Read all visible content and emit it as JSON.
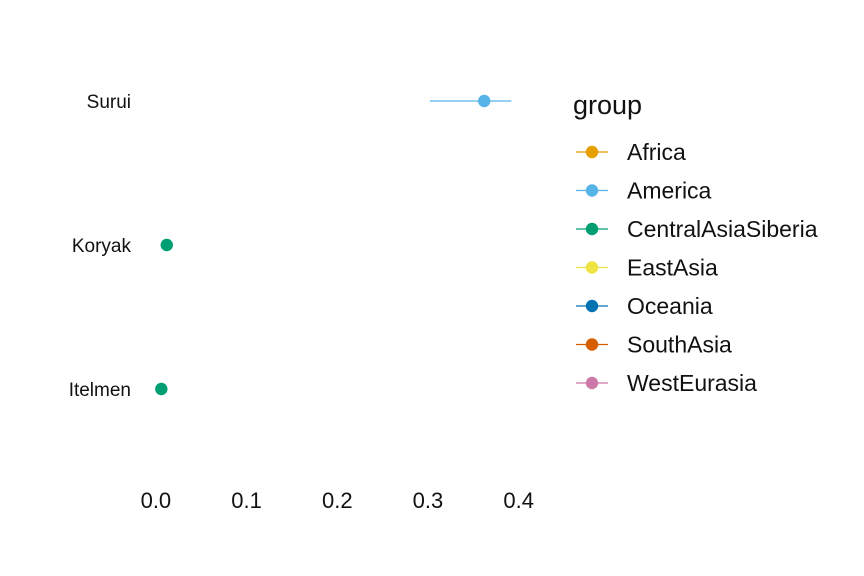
{
  "chart_data": {
    "type": "scatter",
    "subtype": "dot-and-whisker",
    "xlim": [
      -0.012,
      0.418
    ],
    "x_ticks": [
      "0.0",
      "0.1",
      "0.2",
      "0.3",
      "0.4"
    ],
    "x_tick_values": [
      0.0,
      0.1,
      0.2,
      0.3,
      0.4
    ],
    "grid": false,
    "legend_position": "right",
    "legend": {
      "title": "group",
      "entries": [
        {
          "name": "Africa",
          "color": "#E69F00"
        },
        {
          "name": "America",
          "color": "#56B4E9"
        },
        {
          "name": "CentralAsiaSiberia",
          "color": "#009E73"
        },
        {
          "name": "EastAsia",
          "color": "#F0E442"
        },
        {
          "name": "Oceania",
          "color": "#0072B2"
        },
        {
          "name": "SouthAsia",
          "color": "#D55E00"
        },
        {
          "name": "WestEurasia",
          "color": "#CC79A7"
        }
      ]
    },
    "rows": [
      {
        "label": "Surui",
        "group": "America",
        "value": 0.362,
        "lo": 0.302,
        "hi": 0.392
      },
      {
        "label": "Koryak",
        "group": "CentralAsiaSiberia",
        "value": 0.012,
        "lo": 0.012,
        "hi": 0.012
      },
      {
        "label": "Itelmen",
        "group": "CentralAsiaSiberia",
        "value": 0.006,
        "lo": 0.004,
        "hi": 0.008
      }
    ]
  }
}
